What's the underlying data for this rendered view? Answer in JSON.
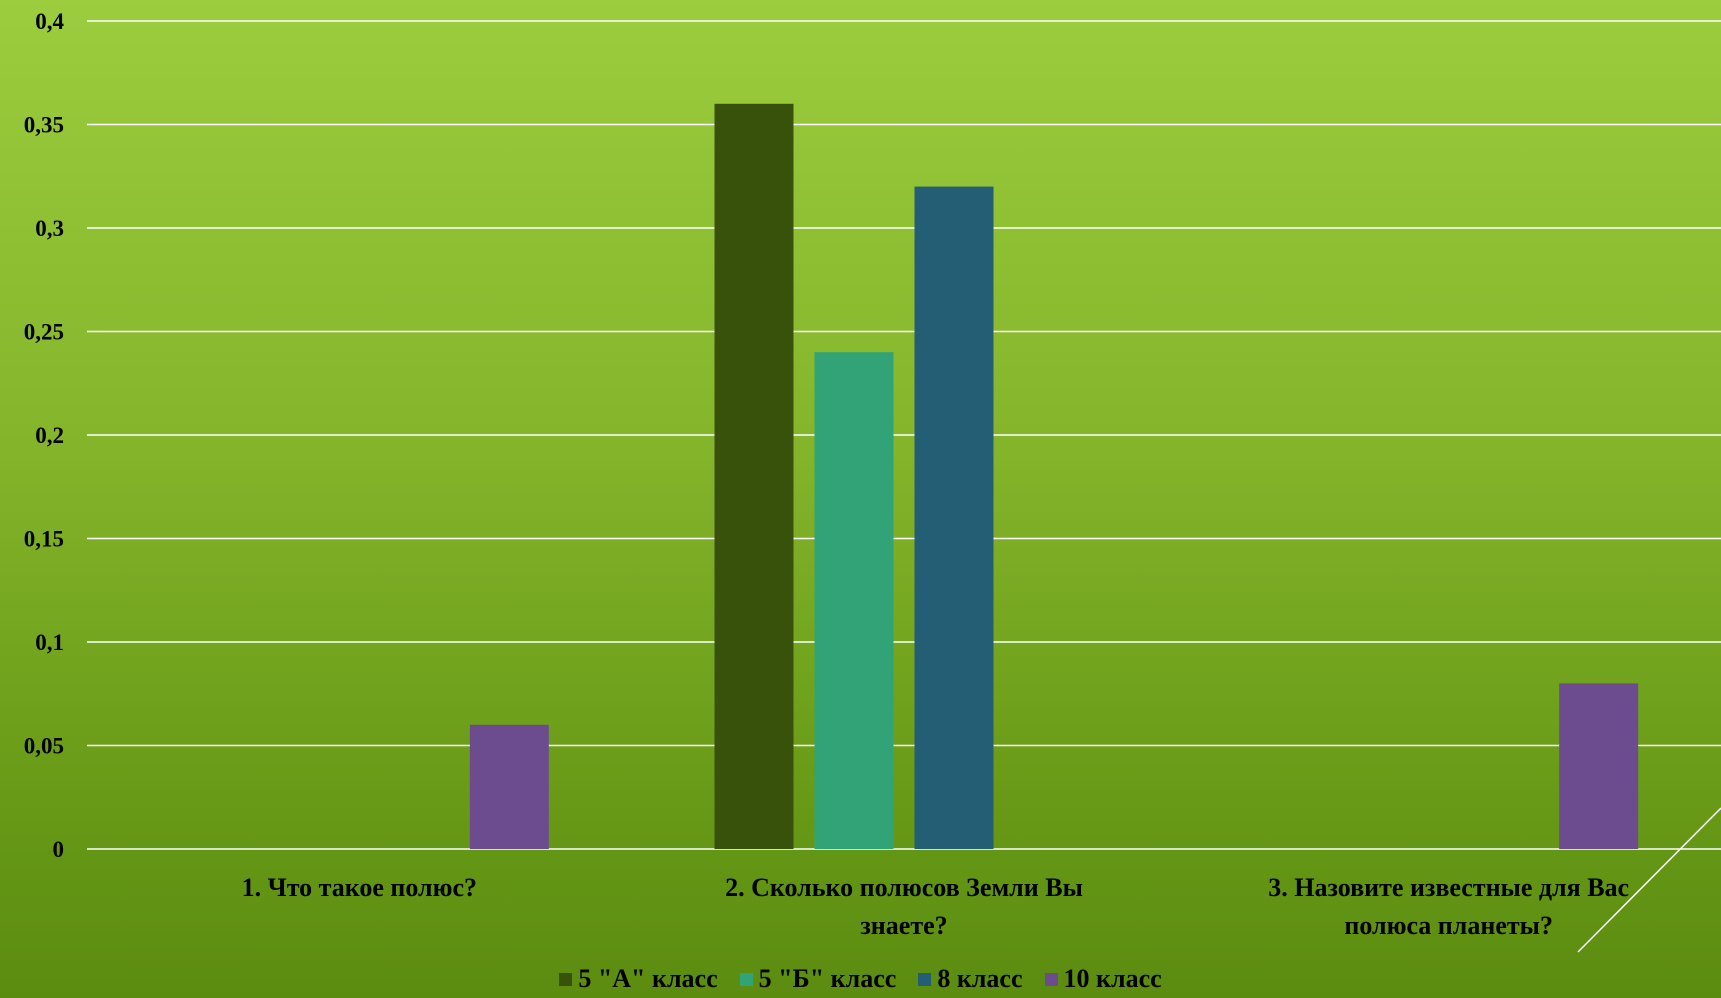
{
  "chart_data": {
    "type": "bar",
    "categories": [
      "1. Что такое полюс?",
      "2. Сколько полюсов Земли Вы знаете?",
      "3. Назовите известные для Вас полюса планеты?"
    ],
    "category_lines": [
      [
        "1. Что такое полюс?"
      ],
      [
        "2. Сколько полюсов Земли Вы",
        "знаете?"
      ],
      [
        "3. Назовите известные для Вас",
        "полюса планеты?"
      ]
    ],
    "series": [
      {
        "name": "5 \"А\" класс",
        "color": "#38520c",
        "values": [
          0,
          0.36,
          0
        ]
      },
      {
        "name": "5 \"Б\" класс",
        "color": "#31a377",
        "values": [
          0,
          0.24,
          0
        ]
      },
      {
        "name": "8 класс",
        "color": "#245e74",
        "values": [
          0,
          0.32,
          0
        ]
      },
      {
        "name": "10 класс",
        "color": "#6c4c8f",
        "values": [
          0.06,
          0,
          0.08
        ]
      }
    ],
    "ylim": [
      0,
      0.4
    ],
    "yticks": [
      "0",
      "0,05",
      "0,1",
      "0,15",
      "0,2",
      "0,25",
      "0,3",
      "0,35",
      "0,4"
    ],
    "ytick_values": [
      0,
      0.05,
      0.1,
      0.15,
      0.2,
      0.25,
      0.3,
      0.35,
      0.4
    ],
    "grid": true,
    "legend_position": "bottom"
  }
}
